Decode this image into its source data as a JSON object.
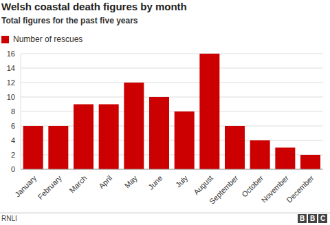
{
  "chart_data": {
    "type": "bar",
    "title": "Welsh coastal death figures by month",
    "subtitle": "Total figures for the past five years",
    "source": "RNLI",
    "logo": "BBC",
    "categories": [
      "January",
      "February",
      "March",
      "April",
      "May",
      "June",
      "July",
      "August",
      "September",
      "October",
      "November",
      "December"
    ],
    "series": [
      {
        "name": "Number of rescues",
        "color": "#cc0000",
        "values": [
          6,
          6,
          9,
          9,
          12,
          10,
          8,
          16,
          6,
          4,
          3,
          2
        ]
      }
    ],
    "ylim": [
      0,
      16
    ],
    "yticks": [
      0,
      2,
      4,
      6,
      8,
      10,
      12,
      14,
      16
    ],
    "grid": true,
    "legend": "top-left"
  }
}
